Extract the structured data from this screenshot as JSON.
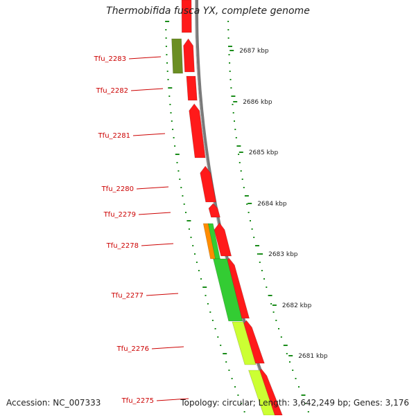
{
  "title": "Thermobifida fusca YX, complete genome",
  "footer": {
    "accession": "Accession: NC_007333",
    "summary": "Topology: circular; Length: 3,642,249 bp; Genes: 3,176"
  },
  "scale_labels": [
    "2687 kbp",
    "2686 kbp",
    "2685 kbp",
    "2684 kbp",
    "2683 kbp",
    "2682 kbp",
    "2681 kbp"
  ],
  "gene_labels": [
    "Tfu_2283",
    "Tfu_2282",
    "Tfu_2281",
    "Tfu_2280",
    "Tfu_2279",
    "Tfu_2278",
    "Tfu_2277",
    "Tfu_2276",
    "Tfu_2275"
  ],
  "colors": {
    "gene_red": "#ff1a1a",
    "gene_green": "#33cc33",
    "gene_olive": "#6b8e23",
    "gene_lime": "#ccff33",
    "gene_orange": "#ff8c00",
    "backbone": "#7a7a7a",
    "tick_green": "#1a8c1a",
    "label_red": "#cc0000"
  }
}
